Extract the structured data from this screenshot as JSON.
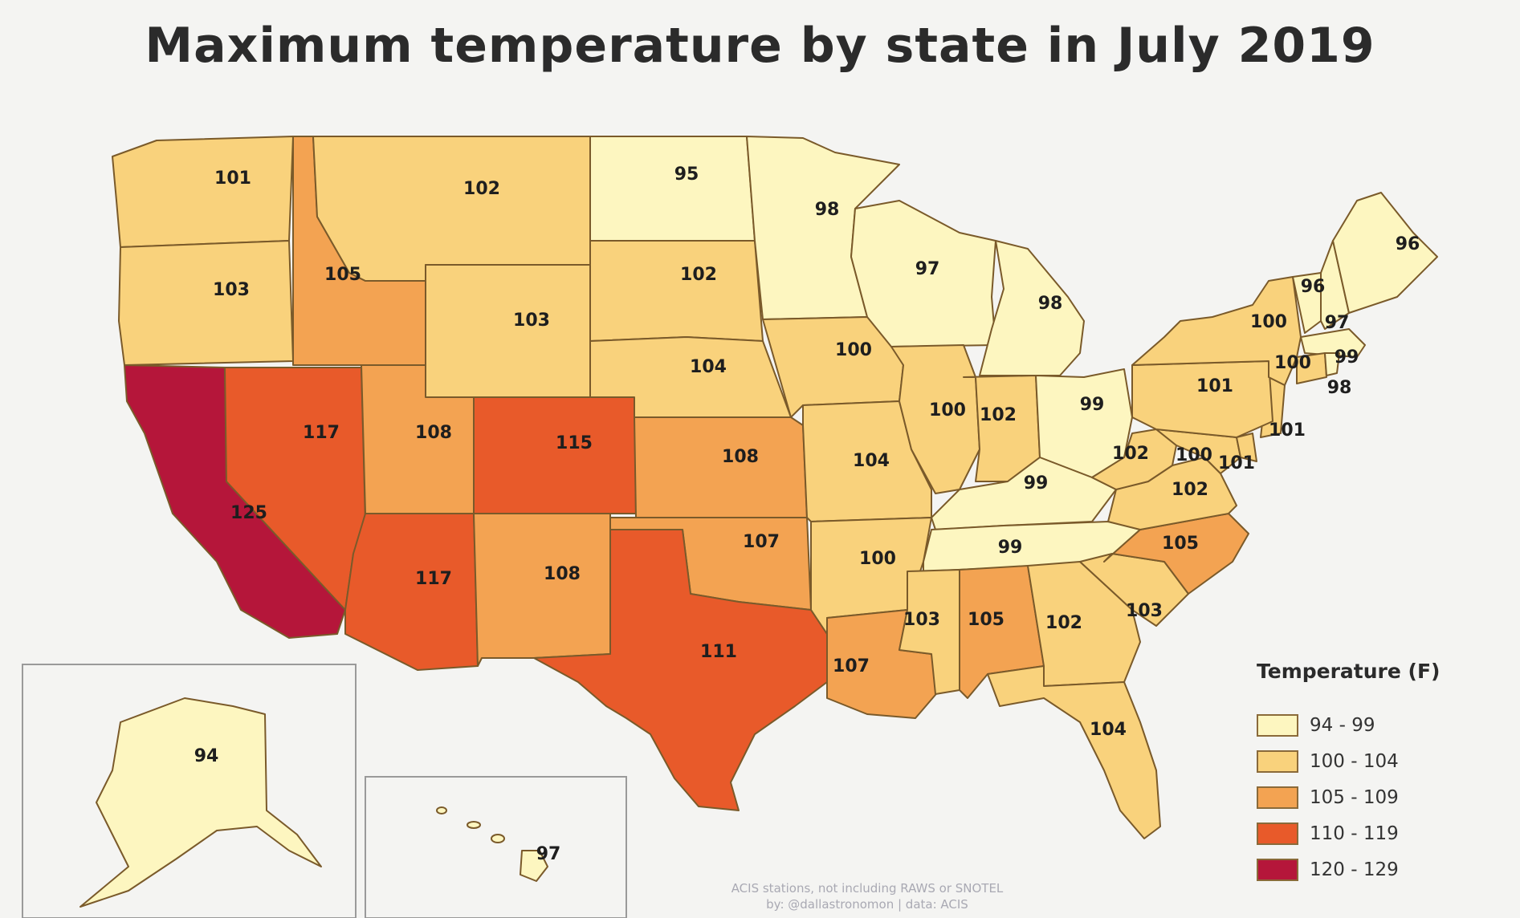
{
  "title": "Maximum temperature by state in July 2019",
  "legend": {
    "title": "Temperature (F)",
    "items": [
      {
        "label": "94 - 99",
        "color": "#fdf6c0"
      },
      {
        "label": "100 - 104",
        "color": "#f9d27c"
      },
      {
        "label": "105 - 109",
        "color": "#f3a352"
      },
      {
        "label": "110 - 119",
        "color": "#e85a2a"
      },
      {
        "label": "120 - 129",
        "color": "#b5163a"
      }
    ]
  },
  "credit": {
    "line1": "ACIS stations, not including RAWS or SNOTEL",
    "line2": "by: @dallastronomon | data: ACIS"
  },
  "states": {
    "wa": "101",
    "or": "103",
    "ca": "125",
    "nv": "117",
    "id": "105",
    "mt": "102",
    "wy": "103",
    "ut": "108",
    "az": "117",
    "co": "115",
    "nm": "108",
    "nd": "95",
    "sd": "102",
    "ne": "104",
    "ks": "108",
    "ok": "107",
    "tx": "111",
    "mn": "98",
    "ia": "100",
    "mo": "104",
    "ar": "100",
    "la": "107",
    "wi": "97",
    "il": "100",
    "in": "102",
    "mi": "98",
    "oh": "99",
    "ky": "99",
    "tn": "99",
    "ms": "103",
    "al": "105",
    "ga": "102",
    "fl": "104",
    "sc": "103",
    "nc": "105",
    "va": "102",
    "wv": "102",
    "md": "100",
    "de": "101",
    "nj": "101",
    "pa": "101",
    "ny": "100",
    "vt": "96",
    "nh": "97",
    "me": "96",
    "ma": "99",
    "ct": "100",
    "ri": "98",
    "ak": "94",
    "hi": "97"
  }
}
